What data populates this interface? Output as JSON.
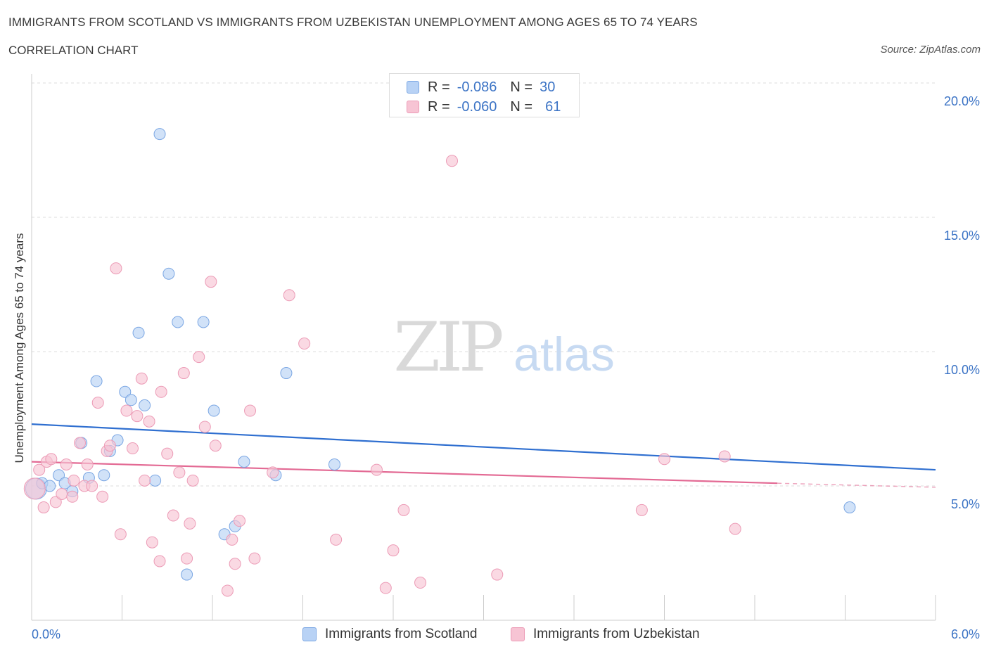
{
  "header": {
    "title": "IMMIGRANTS FROM SCOTLAND VS IMMIGRANTS FROM UZBEKISTAN UNEMPLOYMENT AMONG AGES 65 TO 74 YEARS",
    "subtitle": "CORRELATION CHART",
    "source": "Source: ZipAtlas.com"
  },
  "watermark": {
    "zip": "ZIP",
    "atlas": "atlas"
  },
  "legend": {
    "rows": [
      {
        "r_label": "R =",
        "r_value": "-0.086",
        "n_label": "N =",
        "n_value": "30"
      },
      {
        "r_label": "R =",
        "r_value": "-0.060",
        "n_label": "N =",
        "n_value": "61"
      }
    ]
  },
  "colors": {
    "scotland_fill": "#b8d2f5",
    "scotland_stroke": "#7aa6e3",
    "scotland_line": "#2f6fd0",
    "uzbekistan_fill": "#f7c4d4",
    "uzbekistan_stroke": "#ec9bb6",
    "uzbekistan_line": "#e36a94",
    "tick_label": "#3b73c5",
    "grid": "#dddddd"
  },
  "chart_data": {
    "type": "scatter",
    "title": "IMMIGRANTS FROM SCOTLAND VS IMMIGRANTS FROM UZBEKISTAN UNEMPLOYMENT AMONG AGES 65 TO 74 YEARS",
    "xlabel": "",
    "ylabel": "Unemployment Among Ages 65 to 74 years",
    "xlim": [
      0,
      6
    ],
    "ylim": [
      0,
      20
    ],
    "x_tick_labels": [
      "0.0%",
      "6.0%"
    ],
    "y_ticks": [
      5,
      10,
      15,
      20
    ],
    "y_tick_labels": [
      "5.0%",
      "10.0%",
      "15.0%",
      "20.0%"
    ],
    "grid": true,
    "series": [
      {
        "name": "Immigrants from Scotland",
        "r": -0.086,
        "n": 30,
        "trend": {
          "x": [
            0,
            6
          ],
          "y": [
            7.3,
            5.6
          ]
        },
        "points": [
          {
            "x": 0.03,
            "y": 4.9,
            "big": true
          },
          {
            "x": 0.07,
            "y": 5.1
          },
          {
            "x": 0.12,
            "y": 5.0
          },
          {
            "x": 0.18,
            "y": 5.4
          },
          {
            "x": 0.22,
            "y": 5.1
          },
          {
            "x": 0.27,
            "y": 4.8
          },
          {
            "x": 0.33,
            "y": 6.6
          },
          {
            "x": 0.38,
            "y": 5.3
          },
          {
            "x": 0.43,
            "y": 8.9
          },
          {
            "x": 0.48,
            "y": 5.4
          },
          {
            "x": 0.52,
            "y": 6.3
          },
          {
            "x": 0.57,
            "y": 6.7
          },
          {
            "x": 0.62,
            "y": 8.5
          },
          {
            "x": 0.66,
            "y": 8.2
          },
          {
            "x": 0.71,
            "y": 10.7
          },
          {
            "x": 0.75,
            "y": 8.0
          },
          {
            "x": 0.82,
            "y": 5.2
          },
          {
            "x": 0.85,
            "y": 18.1
          },
          {
            "x": 0.91,
            "y": 12.9
          },
          {
            "x": 0.97,
            "y": 11.1
          },
          {
            "x": 1.03,
            "y": 1.7
          },
          {
            "x": 1.14,
            "y": 11.1
          },
          {
            "x": 1.21,
            "y": 7.8
          },
          {
            "x": 1.28,
            "y": 3.2
          },
          {
            "x": 1.35,
            "y": 3.5
          },
          {
            "x": 1.41,
            "y": 5.9
          },
          {
            "x": 1.62,
            "y": 5.4
          },
          {
            "x": 1.69,
            "y": 9.2
          },
          {
            "x": 2.01,
            "y": 5.8
          },
          {
            "x": 5.43,
            "y": 4.2
          }
        ]
      },
      {
        "name": "Immigrants from Uzbekistan",
        "r": -0.06,
        "n": 61,
        "trend": {
          "x": [
            0,
            4.95
          ],
          "y": [
            5.9,
            5.1
          ],
          "dashed_to": [
            6,
            4.95
          ]
        },
        "points": [
          {
            "x": 0.02,
            "y": 4.9,
            "big": true
          },
          {
            "x": 0.05,
            "y": 5.6
          },
          {
            "x": 0.08,
            "y": 4.2
          },
          {
            "x": 0.1,
            "y": 5.9
          },
          {
            "x": 0.13,
            "y": 6.0
          },
          {
            "x": 0.16,
            "y": 4.4
          },
          {
            "x": 0.2,
            "y": 4.7
          },
          {
            "x": 0.23,
            "y": 5.8
          },
          {
            "x": 0.27,
            "y": 4.6
          },
          {
            "x": 0.28,
            "y": 5.2
          },
          {
            "x": 0.32,
            "y": 6.6
          },
          {
            "x": 0.35,
            "y": 5.0
          },
          {
            "x": 0.37,
            "y": 5.8
          },
          {
            "x": 0.4,
            "y": 5.0
          },
          {
            "x": 0.44,
            "y": 8.1
          },
          {
            "x": 0.47,
            "y": 4.6
          },
          {
            "x": 0.5,
            "y": 6.3
          },
          {
            "x": 0.52,
            "y": 6.5
          },
          {
            "x": 0.56,
            "y": 13.1
          },
          {
            "x": 0.59,
            "y": 3.2
          },
          {
            "x": 0.63,
            "y": 7.8
          },
          {
            "x": 0.67,
            "y": 6.4
          },
          {
            "x": 0.7,
            "y": 7.6
          },
          {
            "x": 0.73,
            "y": 9.0
          },
          {
            "x": 0.75,
            "y": 5.2
          },
          {
            "x": 0.78,
            "y": 7.4
          },
          {
            "x": 0.8,
            "y": 2.9
          },
          {
            "x": 0.85,
            "y": 2.2
          },
          {
            "x": 0.86,
            "y": 8.5
          },
          {
            "x": 0.9,
            "y": 6.2
          },
          {
            "x": 0.94,
            "y": 3.9
          },
          {
            "x": 0.98,
            "y": 5.5
          },
          {
            "x": 1.01,
            "y": 9.2
          },
          {
            "x": 1.03,
            "y": 2.3
          },
          {
            "x": 1.05,
            "y": 3.6
          },
          {
            "x": 1.07,
            "y": 5.2
          },
          {
            "x": 1.11,
            "y": 9.8
          },
          {
            "x": 1.15,
            "y": 7.2
          },
          {
            "x": 1.19,
            "y": 12.6
          },
          {
            "x": 1.22,
            "y": 6.5
          },
          {
            "x": 1.3,
            "y": 1.1
          },
          {
            "x": 1.33,
            "y": 3.0
          },
          {
            "x": 1.35,
            "y": 2.1
          },
          {
            "x": 1.38,
            "y": 3.7
          },
          {
            "x": 1.45,
            "y": 7.8
          },
          {
            "x": 1.48,
            "y": 2.3
          },
          {
            "x": 1.6,
            "y": 5.5
          },
          {
            "x": 1.71,
            "y": 12.1
          },
          {
            "x": 1.81,
            "y": 10.3
          },
          {
            "x": 2.02,
            "y": 3.0
          },
          {
            "x": 2.29,
            "y": 5.6
          },
          {
            "x": 2.35,
            "y": 1.2
          },
          {
            "x": 2.4,
            "y": 2.6
          },
          {
            "x": 2.47,
            "y": 4.1
          },
          {
            "x": 2.58,
            "y": 1.4
          },
          {
            "x": 2.79,
            "y": 17.1
          },
          {
            "x": 3.09,
            "y": 1.7
          },
          {
            "x": 4.05,
            "y": 4.1
          },
          {
            "x": 4.2,
            "y": 6.0
          },
          {
            "x": 4.6,
            "y": 6.1
          },
          {
            "x": 4.67,
            "y": 3.4
          }
        ]
      }
    ]
  },
  "bottom_legend": {
    "scotland_label": "Immigrants from Scotland",
    "uzbekistan_label": "Immigrants from Uzbekistan"
  }
}
